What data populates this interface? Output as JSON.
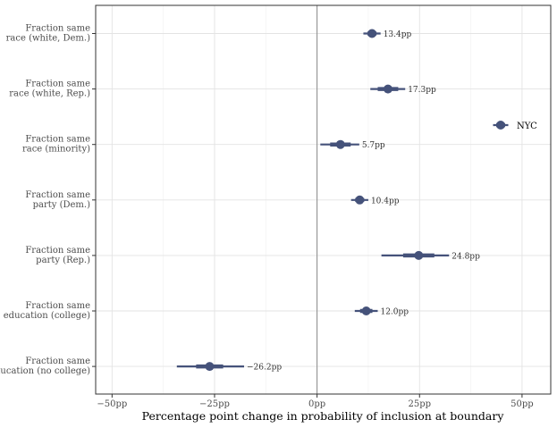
{
  "chart_data": {
    "type": "coefficient-plot",
    "title": "",
    "xlabel": "Percentage point change in probability of inclusion at boundary",
    "ylabel": "",
    "xlim": [
      -54,
      57
    ],
    "x_ticks": [
      -50,
      -25,
      0,
      25,
      50
    ],
    "x_tick_labels": [
      "−50pp",
      "−25pp",
      "0pp",
      "25pp",
      "50pp"
    ],
    "reference_line": 0,
    "grid": true,
    "color": "#45527a",
    "series": [
      {
        "name": "NYC",
        "points": [
          {
            "label_line1": "Fraction same",
            "label_line2": "race (white, Dem.)",
            "estimate": 13.4,
            "label": "13.4pp",
            "ci_inner": [
              12.3,
              14.5
            ],
            "ci_outer": [
              11.3,
              15.5
            ]
          },
          {
            "label_line1": "Fraction same",
            "label_line2": "race (white, Rep.)",
            "estimate": 17.3,
            "label": "17.3pp",
            "ci_inner": [
              14.8,
              19.8
            ],
            "ci_outer": [
              13.0,
              21.5
            ]
          },
          {
            "label_line1": "Fraction same",
            "label_line2": "race (minority)",
            "estimate": 5.7,
            "label": "5.7pp",
            "ci_inner": [
              3.2,
              8.2
            ],
            "ci_outer": [
              0.8,
              10.3
            ]
          },
          {
            "label_line1": "Fraction same",
            "label_line2": "party (Dem.)",
            "estimate": 10.4,
            "label": "10.4pp",
            "ci_inner": [
              9.3,
              11.5
            ],
            "ci_outer": [
              8.3,
              12.5
            ]
          },
          {
            "label_line1": "Fraction same",
            "label_line2": "party (Rep.)",
            "estimate": 24.8,
            "label": "24.8pp",
            "ci_inner": [
              21.0,
              28.6
            ],
            "ci_outer": [
              15.7,
              32.2
            ]
          },
          {
            "label_line1": "Fraction same",
            "label_line2": "education (college)",
            "estimate": 12.0,
            "label": "12.0pp",
            "ci_inner": [
              10.5,
              13.5
            ],
            "ci_outer": [
              9.2,
              14.8
            ]
          },
          {
            "label_line1": "Fraction same",
            "label_line2": "education (no college)",
            "estimate": -26.2,
            "label": "−26.2pp",
            "ci_inner": [
              -29.5,
              -22.9
            ],
            "ci_outer": [
              -34.2,
              -17.8
            ]
          }
        ]
      }
    ],
    "legend": {
      "entries": [
        "NYC"
      ],
      "position": "top-right"
    }
  }
}
